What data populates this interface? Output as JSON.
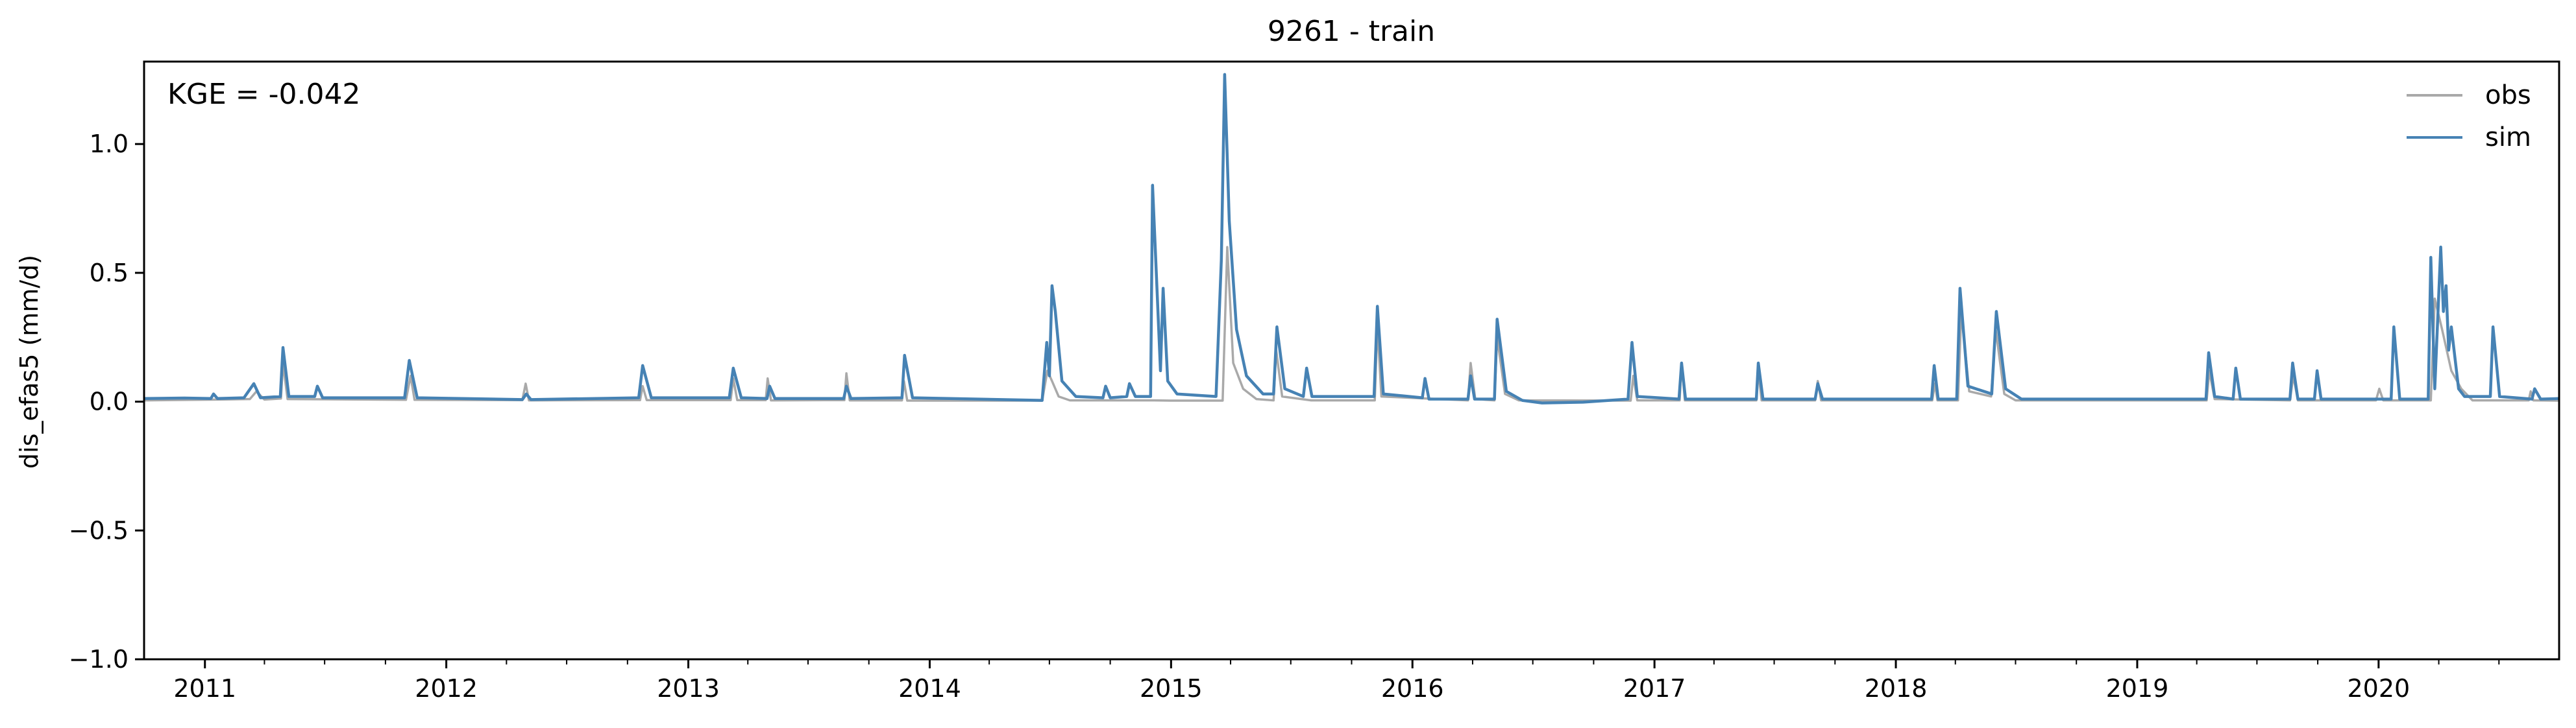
{
  "chart_data": {
    "type": "line",
    "title": "9261 - train",
    "xlabel": "",
    "ylabel": "dis_efas5 (mm/d)",
    "annotation": "KGE = -0.042",
    "x_range": [
      "2010-10-01",
      "2020-09-30"
    ],
    "ylim": [
      -1.0,
      1.32
    ],
    "y_ticks": [
      -1.0,
      -0.5,
      0.0,
      0.5,
      1.0
    ],
    "y_tick_labels": [
      "−1.0",
      "−0.5",
      "0.0",
      "0.5",
      "1.0"
    ],
    "x_ticks": [
      "2011-01-01",
      "2012-01-01",
      "2013-01-01",
      "2014-01-01",
      "2015-01-01",
      "2016-01-01",
      "2017-01-01",
      "2018-01-01",
      "2019-01-01",
      "2020-01-01"
    ],
    "x_tick_labels": [
      "2011",
      "2012",
      "2013",
      "2014",
      "2015",
      "2016",
      "2017",
      "2018",
      "2019",
      "2020"
    ],
    "grid": false,
    "legend_position": "top-right",
    "series": [
      {
        "name": "obs",
        "color": "#a9a9a9",
        "points": [
          [
            "2010-10-01",
            0.005
          ],
          [
            "2011-01-20",
            0.008
          ],
          [
            "2011-03-10",
            0.01
          ],
          [
            "2011-03-20",
            0.04
          ],
          [
            "2011-04-01",
            0.008
          ],
          [
            "2011-04-26",
            0.012
          ],
          [
            "2011-04-29",
            0.15
          ],
          [
            "2011-05-06",
            0.01
          ],
          [
            "2011-11-01",
            0.007
          ],
          [
            "2011-11-08",
            0.1
          ],
          [
            "2011-11-14",
            0.007
          ],
          [
            "2012-04-25",
            0.006
          ],
          [
            "2012-04-30",
            0.07
          ],
          [
            "2012-05-05",
            0.005
          ],
          [
            "2012-10-20",
            0.006
          ],
          [
            "2012-10-24",
            0.06
          ],
          [
            "2012-10-30",
            0.006
          ],
          [
            "2013-03-06",
            0.006
          ],
          [
            "2013-03-10",
            0.09
          ],
          [
            "2013-03-16",
            0.006
          ],
          [
            "2013-04-28",
            0.006
          ],
          [
            "2013-05-01",
            0.09
          ],
          [
            "2013-05-06",
            0.005
          ],
          [
            "2013-08-25",
            0.006
          ],
          [
            "2013-08-28",
            0.11
          ],
          [
            "2013-09-02",
            0.005
          ],
          [
            "2013-11-20",
            0.005
          ],
          [
            "2013-11-23",
            0.08
          ],
          [
            "2013-11-28",
            0.004
          ],
          [
            "2014-06-20",
            0.004
          ],
          [
            "2014-06-28",
            0.12
          ],
          [
            "2014-07-05",
            0.08
          ],
          [
            "2014-07-15",
            0.02
          ],
          [
            "2014-08-01",
            0.005
          ],
          [
            "2014-12-01",
            0.005
          ],
          [
            "2014-12-31",
            0.004
          ],
          [
            "2015-03-20",
            0.004
          ],
          [
            "2015-03-27",
            0.6
          ],
          [
            "2015-04-05",
            0.15
          ],
          [
            "2015-04-20",
            0.05
          ],
          [
            "2015-05-10",
            0.01
          ],
          [
            "2015-06-05",
            0.005
          ],
          [
            "2015-06-09",
            0.2
          ],
          [
            "2015-06-18",
            0.02
          ],
          [
            "2015-08-01",
            0.005
          ],
          [
            "2015-11-05",
            0.005
          ],
          [
            "2015-11-09",
            0.3
          ],
          [
            "2015-11-15",
            0.02
          ],
          [
            "2016-03-25",
            0.005
          ],
          [
            "2016-03-29",
            0.15
          ],
          [
            "2016-04-05",
            0.01
          ],
          [
            "2016-05-04",
            0.005
          ],
          [
            "2016-05-08",
            0.25
          ],
          [
            "2016-05-20",
            0.03
          ],
          [
            "2016-06-10",
            0.005
          ],
          [
            "2016-11-26",
            0.004
          ],
          [
            "2016-11-30",
            0.1
          ],
          [
            "2016-12-06",
            0.005
          ],
          [
            "2017-02-08",
            0.005
          ],
          [
            "2017-02-11",
            0.15
          ],
          [
            "2017-02-16",
            0.005
          ],
          [
            "2017-06-04",
            0.005
          ],
          [
            "2017-06-07",
            0.12
          ],
          [
            "2017-06-12",
            0.005
          ],
          [
            "2017-09-01",
            0.005
          ],
          [
            "2017-09-05",
            0.08
          ],
          [
            "2017-09-10",
            0.005
          ],
          [
            "2018-02-25",
            0.005
          ],
          [
            "2018-03-01",
            0.07
          ],
          [
            "2018-03-05",
            0.005
          ],
          [
            "2018-04-05",
            0.005
          ],
          [
            "2018-04-10",
            0.35
          ],
          [
            "2018-04-22",
            0.04
          ],
          [
            "2018-05-25",
            0.02
          ],
          [
            "2018-06-01",
            0.28
          ],
          [
            "2018-06-14",
            0.03
          ],
          [
            "2018-07-01",
            0.005
          ],
          [
            "2019-04-16",
            0.005
          ],
          [
            "2019-04-20",
            0.12
          ],
          [
            "2019-04-28",
            0.01
          ],
          [
            "2019-08-20",
            0.005
          ],
          [
            "2019-08-25",
            0.1
          ],
          [
            "2019-09-01",
            0.005
          ],
          [
            "2019-12-28",
            0.005
          ],
          [
            "2020-01-02",
            0.05
          ],
          [
            "2020-01-08",
            0.005
          ],
          [
            "2020-03-20",
            0.005
          ],
          [
            "2020-03-26",
            0.4
          ],
          [
            "2020-04-06",
            0.28
          ],
          [
            "2020-04-20",
            0.12
          ],
          [
            "2020-05-05",
            0.05
          ],
          [
            "2020-05-22",
            0.005
          ],
          [
            "2020-08-15",
            0.005
          ],
          [
            "2020-08-18",
            0.04
          ],
          [
            "2020-08-22",
            0.005
          ],
          [
            "2020-09-30",
            0.004
          ]
        ]
      },
      {
        "name": "sim",
        "color": "#4682b4",
        "points": [
          [
            "2010-10-01",
            0.012
          ],
          [
            "2010-12-01",
            0.014
          ],
          [
            "2011-01-10",
            0.012
          ],
          [
            "2011-01-14",
            0.03
          ],
          [
            "2011-01-20",
            0.012
          ],
          [
            "2011-03-01",
            0.015
          ],
          [
            "2011-03-16",
            0.07
          ],
          [
            "2011-03-26",
            0.015
          ],
          [
            "2011-04-25",
            0.02
          ],
          [
            "2011-04-29",
            0.21
          ],
          [
            "2011-05-08",
            0.02
          ],
          [
            "2011-06-16",
            0.02
          ],
          [
            "2011-06-20",
            0.06
          ],
          [
            "2011-06-28",
            0.015
          ],
          [
            "2011-10-30",
            0.015
          ],
          [
            "2011-11-06",
            0.16
          ],
          [
            "2011-11-18",
            0.015
          ],
          [
            "2012-04-25",
            0.008
          ],
          [
            "2012-05-01",
            0.03
          ],
          [
            "2012-05-08",
            0.008
          ],
          [
            "2012-10-18",
            0.015
          ],
          [
            "2012-10-24",
            0.14
          ],
          [
            "2012-11-06",
            0.015
          ],
          [
            "2013-03-04",
            0.015
          ],
          [
            "2013-03-10",
            0.13
          ],
          [
            "2013-03-22",
            0.015
          ],
          [
            "2013-04-30",
            0.012
          ],
          [
            "2013-05-04",
            0.06
          ],
          [
            "2013-05-12",
            0.012
          ],
          [
            "2013-08-24",
            0.012
          ],
          [
            "2013-08-28",
            0.06
          ],
          [
            "2013-09-04",
            0.012
          ],
          [
            "2013-11-20",
            0.015
          ],
          [
            "2013-11-24",
            0.18
          ],
          [
            "2013-12-06",
            0.015
          ],
          [
            "2014-06-20",
            0.005
          ],
          [
            "2014-06-27",
            0.23
          ],
          [
            "2014-07-01",
            0.1
          ],
          [
            "2014-07-05",
            0.45
          ],
          [
            "2014-07-10",
            0.35
          ],
          [
            "2014-07-20",
            0.08
          ],
          [
            "2014-08-10",
            0.02
          ],
          [
            "2014-09-20",
            0.015
          ],
          [
            "2014-09-24",
            0.06
          ],
          [
            "2014-10-01",
            0.015
          ],
          [
            "2014-10-26",
            0.02
          ],
          [
            "2014-10-30",
            0.07
          ],
          [
            "2014-11-08",
            0.02
          ],
          [
            "2014-12-01",
            0.02
          ],
          [
            "2014-12-04",
            0.84
          ],
          [
            "2014-12-08",
            0.6
          ],
          [
            "2014-12-16",
            0.12
          ],
          [
            "2014-12-20",
            0.44
          ],
          [
            "2014-12-27",
            0.08
          ],
          [
            "2015-01-10",
            0.03
          ],
          [
            "2015-03-10",
            0.02
          ],
          [
            "2015-03-18",
            0.55
          ],
          [
            "2015-03-23",
            1.27
          ],
          [
            "2015-03-30",
            0.7
          ],
          [
            "2015-04-10",
            0.28
          ],
          [
            "2015-04-25",
            0.1
          ],
          [
            "2015-05-20",
            0.03
          ],
          [
            "2015-06-05",
            0.03
          ],
          [
            "2015-06-10",
            0.29
          ],
          [
            "2015-06-22",
            0.05
          ],
          [
            "2015-07-20",
            0.02
          ],
          [
            "2015-07-25",
            0.13
          ],
          [
            "2015-08-02",
            0.02
          ],
          [
            "2015-11-04",
            0.02
          ],
          [
            "2015-11-09",
            0.37
          ],
          [
            "2015-11-18",
            0.03
          ],
          [
            "2016-01-16",
            0.015
          ],
          [
            "2016-01-20",
            0.09
          ],
          [
            "2016-01-26",
            0.01
          ],
          [
            "2016-03-25",
            0.01
          ],
          [
            "2016-03-29",
            0.1
          ],
          [
            "2016-04-04",
            0.01
          ],
          [
            "2016-05-04",
            0.01
          ],
          [
            "2016-05-08",
            0.32
          ],
          [
            "2016-05-22",
            0.04
          ],
          [
            "2016-06-15",
            0.005
          ],
          [
            "2016-07-15",
            -0.005
          ],
          [
            "2016-09-15",
            -0.002
          ],
          [
            "2016-11-22",
            0.01
          ],
          [
            "2016-11-28",
            0.23
          ],
          [
            "2016-12-06",
            0.02
          ],
          [
            "2017-02-07",
            0.01
          ],
          [
            "2017-02-11",
            0.15
          ],
          [
            "2017-02-17",
            0.01
          ],
          [
            "2017-06-04",
            0.01
          ],
          [
            "2017-06-07",
            0.15
          ],
          [
            "2017-06-14",
            0.01
          ],
          [
            "2017-09-01",
            0.01
          ],
          [
            "2017-09-05",
            0.07
          ],
          [
            "2017-09-12",
            0.01
          ],
          [
            "2018-02-24",
            0.01
          ],
          [
            "2018-02-28",
            0.14
          ],
          [
            "2018-03-06",
            0.01
          ],
          [
            "2018-04-03",
            0.01
          ],
          [
            "2018-04-08",
            0.44
          ],
          [
            "2018-04-20",
            0.06
          ],
          [
            "2018-05-26",
            0.03
          ],
          [
            "2018-06-02",
            0.35
          ],
          [
            "2018-06-16",
            0.05
          ],
          [
            "2018-07-10",
            0.01
          ],
          [
            "2019-04-15",
            0.01
          ],
          [
            "2019-04-19",
            0.19
          ],
          [
            "2019-04-28",
            0.02
          ],
          [
            "2019-05-26",
            0.01
          ],
          [
            "2019-05-30",
            0.13
          ],
          [
            "2019-06-06",
            0.01
          ],
          [
            "2019-08-20",
            0.01
          ],
          [
            "2019-08-24",
            0.15
          ],
          [
            "2019-09-01",
            0.01
          ],
          [
            "2019-09-26",
            0.01
          ],
          [
            "2019-09-30",
            0.12
          ],
          [
            "2019-10-06",
            0.01
          ],
          [
            "2020-01-20",
            0.01
          ],
          [
            "2020-01-24",
            0.29
          ],
          [
            "2020-02-02",
            0.01
          ],
          [
            "2020-03-16",
            0.01
          ],
          [
            "2020-03-20",
            0.56
          ],
          [
            "2020-03-26",
            0.05
          ],
          [
            "2020-04-04",
            0.6
          ],
          [
            "2020-04-08",
            0.35
          ],
          [
            "2020-04-12",
            0.45
          ],
          [
            "2020-04-16",
            0.2
          ],
          [
            "2020-04-20",
            0.29
          ],
          [
            "2020-05-01",
            0.05
          ],
          [
            "2020-05-10",
            0.02
          ],
          [
            "2020-06-18",
            0.02
          ],
          [
            "2020-06-22",
            0.29
          ],
          [
            "2020-07-02",
            0.02
          ],
          [
            "2020-08-20",
            0.01
          ],
          [
            "2020-08-24",
            0.05
          ],
          [
            "2020-09-02",
            0.01
          ],
          [
            "2020-09-30",
            0.012
          ]
        ]
      }
    ]
  }
}
